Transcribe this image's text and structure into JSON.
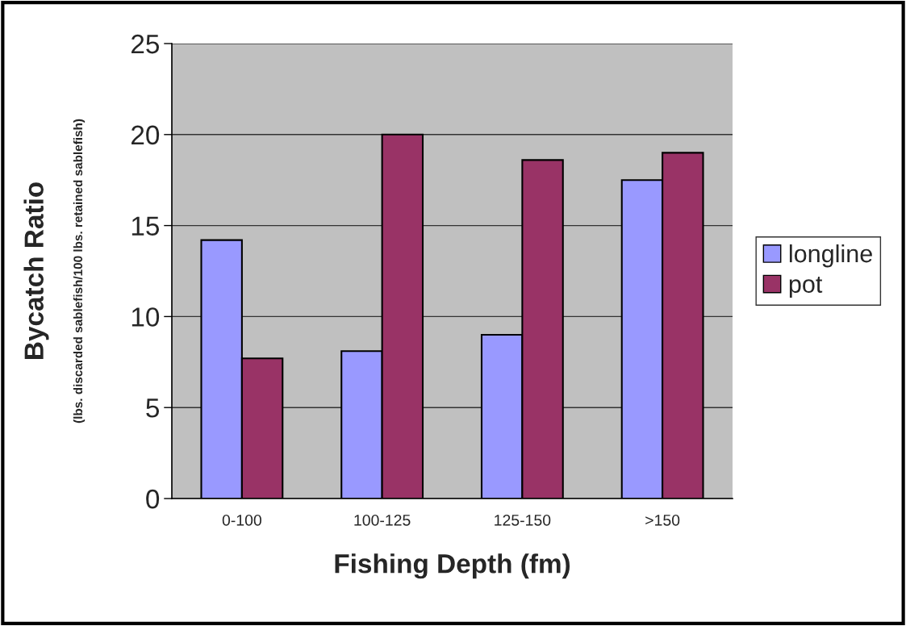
{
  "chart_data": {
    "type": "bar",
    "xlabel": "Fishing Depth (fm)",
    "ylabel": "Bycatch Ratio",
    "subtitle": "(lbs. discarded sablefish/100 lbs. retained sablefish)",
    "categories": [
      "0-100",
      "100-125",
      "125-150",
      ">150"
    ],
    "series": [
      {
        "name": "longline",
        "color": "#9999ff",
        "values": [
          14.2,
          8.1,
          9.0,
          17.5
        ]
      },
      {
        "name": "pot",
        "color": "#993366",
        "values": [
          7.7,
          20.0,
          18.6,
          19.0
        ]
      }
    ],
    "ylim": [
      0,
      25
    ],
    "yticks": [
      0,
      5,
      10,
      15,
      20,
      25
    ],
    "grid": "y",
    "legend": "right"
  }
}
